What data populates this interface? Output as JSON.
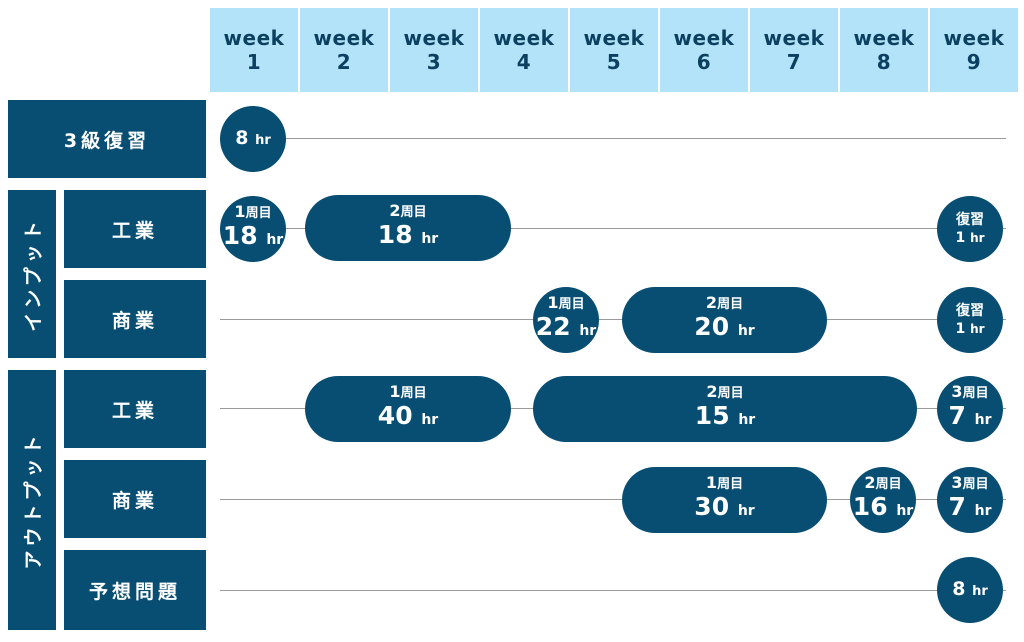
{
  "weeks": [
    {
      "label": "week",
      "num": "1"
    },
    {
      "label": "week",
      "num": "2"
    },
    {
      "label": "week",
      "num": "3"
    },
    {
      "label": "week",
      "num": "4"
    },
    {
      "label": "week",
      "num": "5"
    },
    {
      "label": "week",
      "num": "6"
    },
    {
      "label": "week",
      "num": "7"
    },
    {
      "label": "week",
      "num": "8"
    },
    {
      "label": "week",
      "num": "9"
    }
  ],
  "groups": {
    "input": "インプット",
    "output": "アウトプット"
  },
  "rows": {
    "review3": "3級復習",
    "in_industrial": "工業",
    "in_commercial": "商業",
    "out_industrial": "工業",
    "out_commercial": "商業",
    "out_mock": "予想問題"
  },
  "unit": "hr",
  "lap_suffix": "周目",
  "tasks": {
    "review3_w1": {
      "hours": "8"
    },
    "in_ind_lap1": {
      "lap": "1",
      "hours": "18"
    },
    "in_ind_lap2": {
      "lap": "2",
      "hours": "18"
    },
    "in_ind_review": {
      "label": "復習",
      "hours": "1"
    },
    "in_com_lap1": {
      "lap": "1",
      "hours": "22"
    },
    "in_com_lap2": {
      "lap": "2",
      "hours": "20"
    },
    "in_com_review": {
      "label": "復習",
      "hours": "1"
    },
    "out_ind_lap1": {
      "lap": "1",
      "hours": "40"
    },
    "out_ind_lap2": {
      "lap": "2",
      "hours": "15"
    },
    "out_ind_lap3": {
      "lap": "3",
      "hours": "7"
    },
    "out_com_lap1": {
      "lap": "1",
      "hours": "30"
    },
    "out_com_lap2": {
      "lap": "2",
      "hours": "16"
    },
    "out_com_lap3": {
      "lap": "3",
      "hours": "7"
    },
    "out_mock_w9": {
      "hours": "8"
    }
  },
  "colors": {
    "navy": "#084e73",
    "week_header": "#b3e3f8",
    "line": "#9a9a9a"
  }
}
